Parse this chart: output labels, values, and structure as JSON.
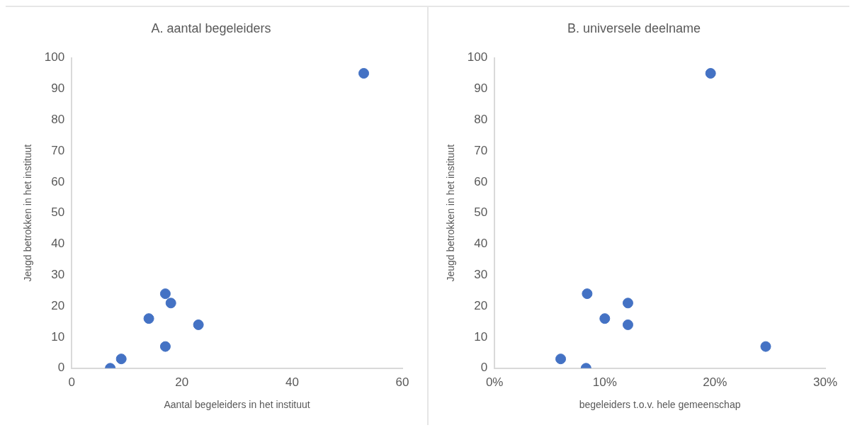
{
  "chart_data": [
    {
      "type": "scatter",
      "title": "A. aantal begeleiders",
      "xlabel": "Aantal begeleiders in het instituut",
      "ylabel": "Jeugd betrokken in het instituut",
      "x": [
        7,
        9,
        14,
        17,
        18,
        17,
        23,
        53
      ],
      "values": [
        0,
        3,
        16,
        24,
        21,
        7,
        14,
        95
      ],
      "color": "#4472c4",
      "marker": "circle",
      "xlim": [
        0,
        60
      ],
      "xticks": [
        0,
        20,
        40,
        60
      ],
      "ylim": [
        0,
        100
      ],
      "yticks": [
        0,
        10,
        20,
        30,
        40,
        50,
        60,
        70,
        80,
        90,
        100
      ],
      "grid": false,
      "legend": false
    },
    {
      "type": "scatter",
      "title": "B. universele deelname",
      "xlabel": "begeleiders t.o.v. hele gemeenschap",
      "ylabel": "Jeugd betrokken in het instituut",
      "x": [
        0.06,
        0.083,
        0.084,
        0.1,
        0.121,
        0.121,
        0.196,
        0.246
      ],
      "values": [
        3,
        0,
        24,
        16,
        21,
        14,
        95,
        7
      ],
      "color": "#4472c4",
      "marker": "circle",
      "xlim": [
        0,
        0.3
      ],
      "xticks": [
        {
          "value": 0,
          "label": "0%"
        },
        {
          "value": 0.1,
          "label": "10%"
        },
        {
          "value": 0.2,
          "label": "20%"
        },
        {
          "value": 0.3,
          "label": "30%"
        }
      ],
      "ylim": [
        0,
        100
      ],
      "yticks": [
        0,
        10,
        20,
        30,
        40,
        50,
        60,
        70,
        80,
        90,
        100
      ],
      "grid": false,
      "legend": false
    }
  ]
}
